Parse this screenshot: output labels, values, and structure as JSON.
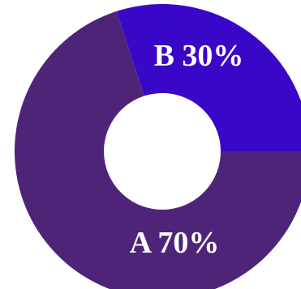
{
  "chart_data": {
    "type": "donut",
    "categories": [
      "B",
      "A"
    ],
    "values": [
      30,
      70
    ],
    "value_labels": [
      "30%",
      "70%"
    ],
    "colors": [
      "#3a06c8",
      "#4e2478"
    ]
  }
}
